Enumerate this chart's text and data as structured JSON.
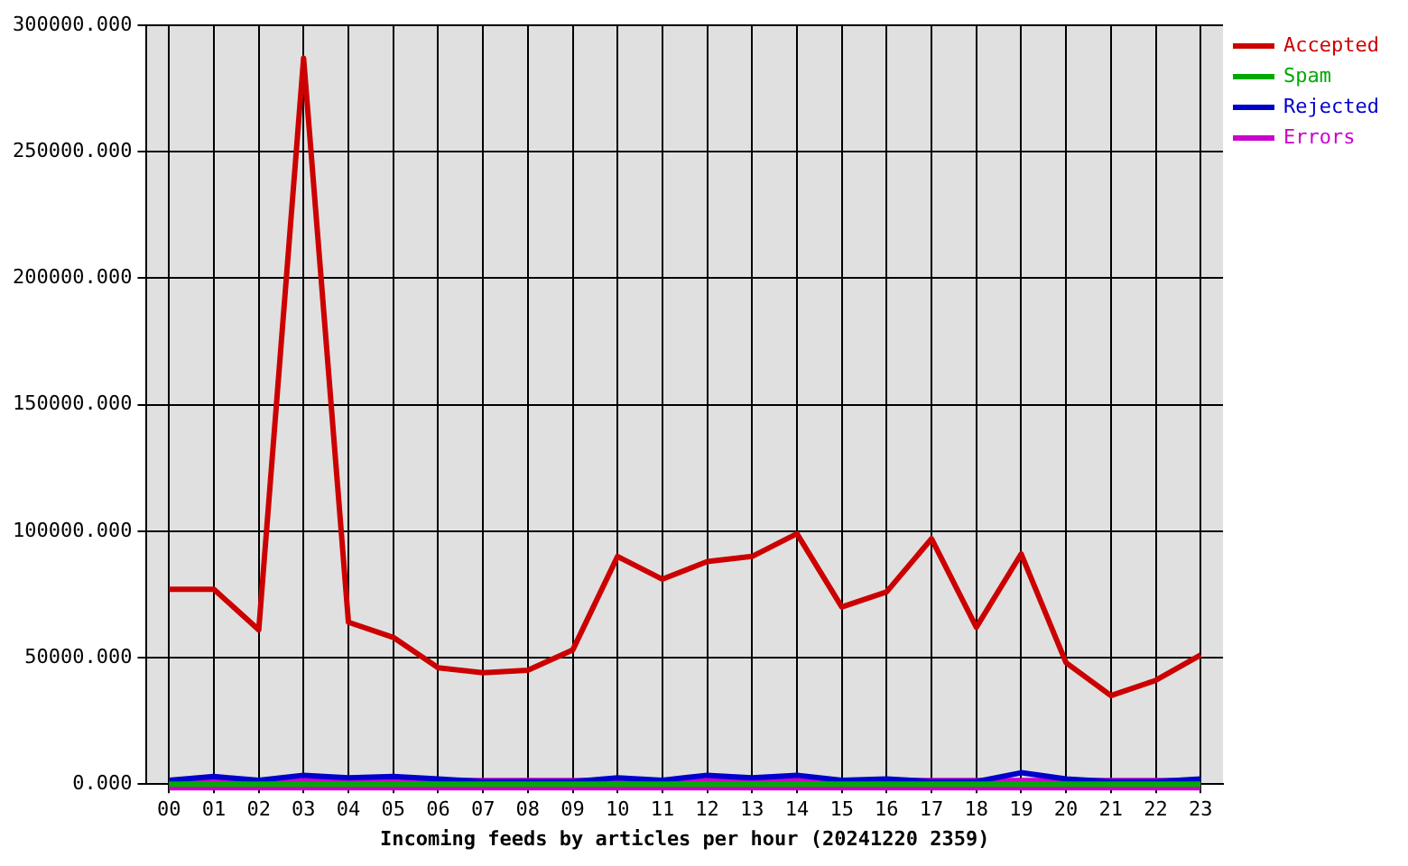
{
  "chart_data": {
    "type": "line",
    "xlabel": "Incoming feeds by articles per hour (20241220 2359)",
    "categories": [
      "00",
      "01",
      "02",
      "03",
      "04",
      "05",
      "06",
      "07",
      "08",
      "09",
      "10",
      "11",
      "12",
      "13",
      "14",
      "15",
      "16",
      "17",
      "18",
      "19",
      "20",
      "21",
      "22",
      "23"
    ],
    "series": [
      {
        "name": "Accepted",
        "color": "#cc0000",
        "values": [
          77000,
          77000,
          61000,
          287000,
          64000,
          58000,
          46000,
          44000,
          45000,
          53000,
          90000,
          81000,
          88000,
          90000,
          99000,
          70000,
          76000,
          97000,
          62000,
          91000,
          48000,
          35000,
          41000,
          51000
        ]
      },
      {
        "name": "Spam",
        "color": "#00aa00",
        "values": [
          0,
          0,
          0,
          0,
          0,
          0,
          0,
          0,
          0,
          0,
          0,
          0,
          0,
          0,
          0,
          0,
          0,
          0,
          0,
          0,
          0,
          0,
          0,
          0
        ]
      },
      {
        "name": "Rejected",
        "color": "#0000cc",
        "values": [
          1500,
          3000,
          1500,
          3500,
          2500,
          3000,
          2000,
          1000,
          1000,
          1000,
          2500,
          1500,
          3500,
          2500,
          3500,
          1500,
          2000,
          1000,
          1000,
          4500,
          2000,
          1000,
          1000,
          2000
        ]
      },
      {
        "name": "Errors",
        "color": "#cc00cc",
        "values": [
          0,
          0,
          0,
          0,
          0,
          0,
          0,
          0,
          0,
          0,
          0,
          0,
          0,
          0,
          0,
          0,
          0,
          0,
          0,
          0,
          0,
          0,
          0,
          0
        ]
      }
    ],
    "ylim": [
      0,
      300000
    ],
    "yticks": [
      {
        "value": 0,
        "label": "0.000"
      },
      {
        "value": 50000,
        "label": "50000.000"
      },
      {
        "value": 100000,
        "label": "100000.000"
      },
      {
        "value": 150000,
        "label": "150000.000"
      },
      {
        "value": 200000,
        "label": "200000.000"
      },
      {
        "value": 250000,
        "label": "250000.000"
      },
      {
        "value": 300000,
        "label": "300000.000"
      }
    ],
    "grid": true,
    "legend": "top right",
    "marker": "none",
    "line_style": "solid"
  }
}
